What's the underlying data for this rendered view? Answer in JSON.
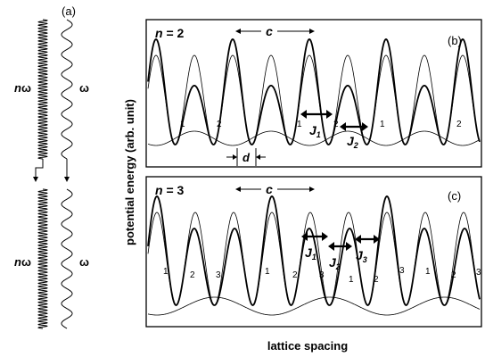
{
  "figure": {
    "panel_a": {
      "label": "(a)",
      "top_high_label_prefix": "n",
      "top_high_label_symbol": "ω",
      "top_low_label": "ω",
      "bottom_high_label_prefix": "n",
      "bottom_high_label_symbol": "ω",
      "bottom_low_label": "ω"
    },
    "panel_b": {
      "label": "(b)",
      "n_label": "n",
      "n_equals": " = 2",
      "period_label": "c",
      "spacing_label": "d",
      "j_labels": [
        "J",
        "J"
      ],
      "j_subscripts": [
        "1",
        "2"
      ],
      "site_labels": [
        "1",
        "2",
        "1",
        "2",
        "1",
        "2"
      ]
    },
    "panel_c": {
      "label": "(c)",
      "n_label": "n",
      "n_equals": " = 3",
      "period_label": "c",
      "j_labels": [
        "J",
        "J",
        "J"
      ],
      "j_subscripts": [
        "1",
        "2",
        "3"
      ],
      "site_labels": [
        "1",
        "2",
        "3",
        "1",
        "2",
        "3",
        "1",
        "2",
        "3",
        "1",
        "2",
        "3"
      ]
    },
    "y_axis_label": "potential energy (arb. unit)",
    "x_axis_label": "lattice spacing"
  }
}
